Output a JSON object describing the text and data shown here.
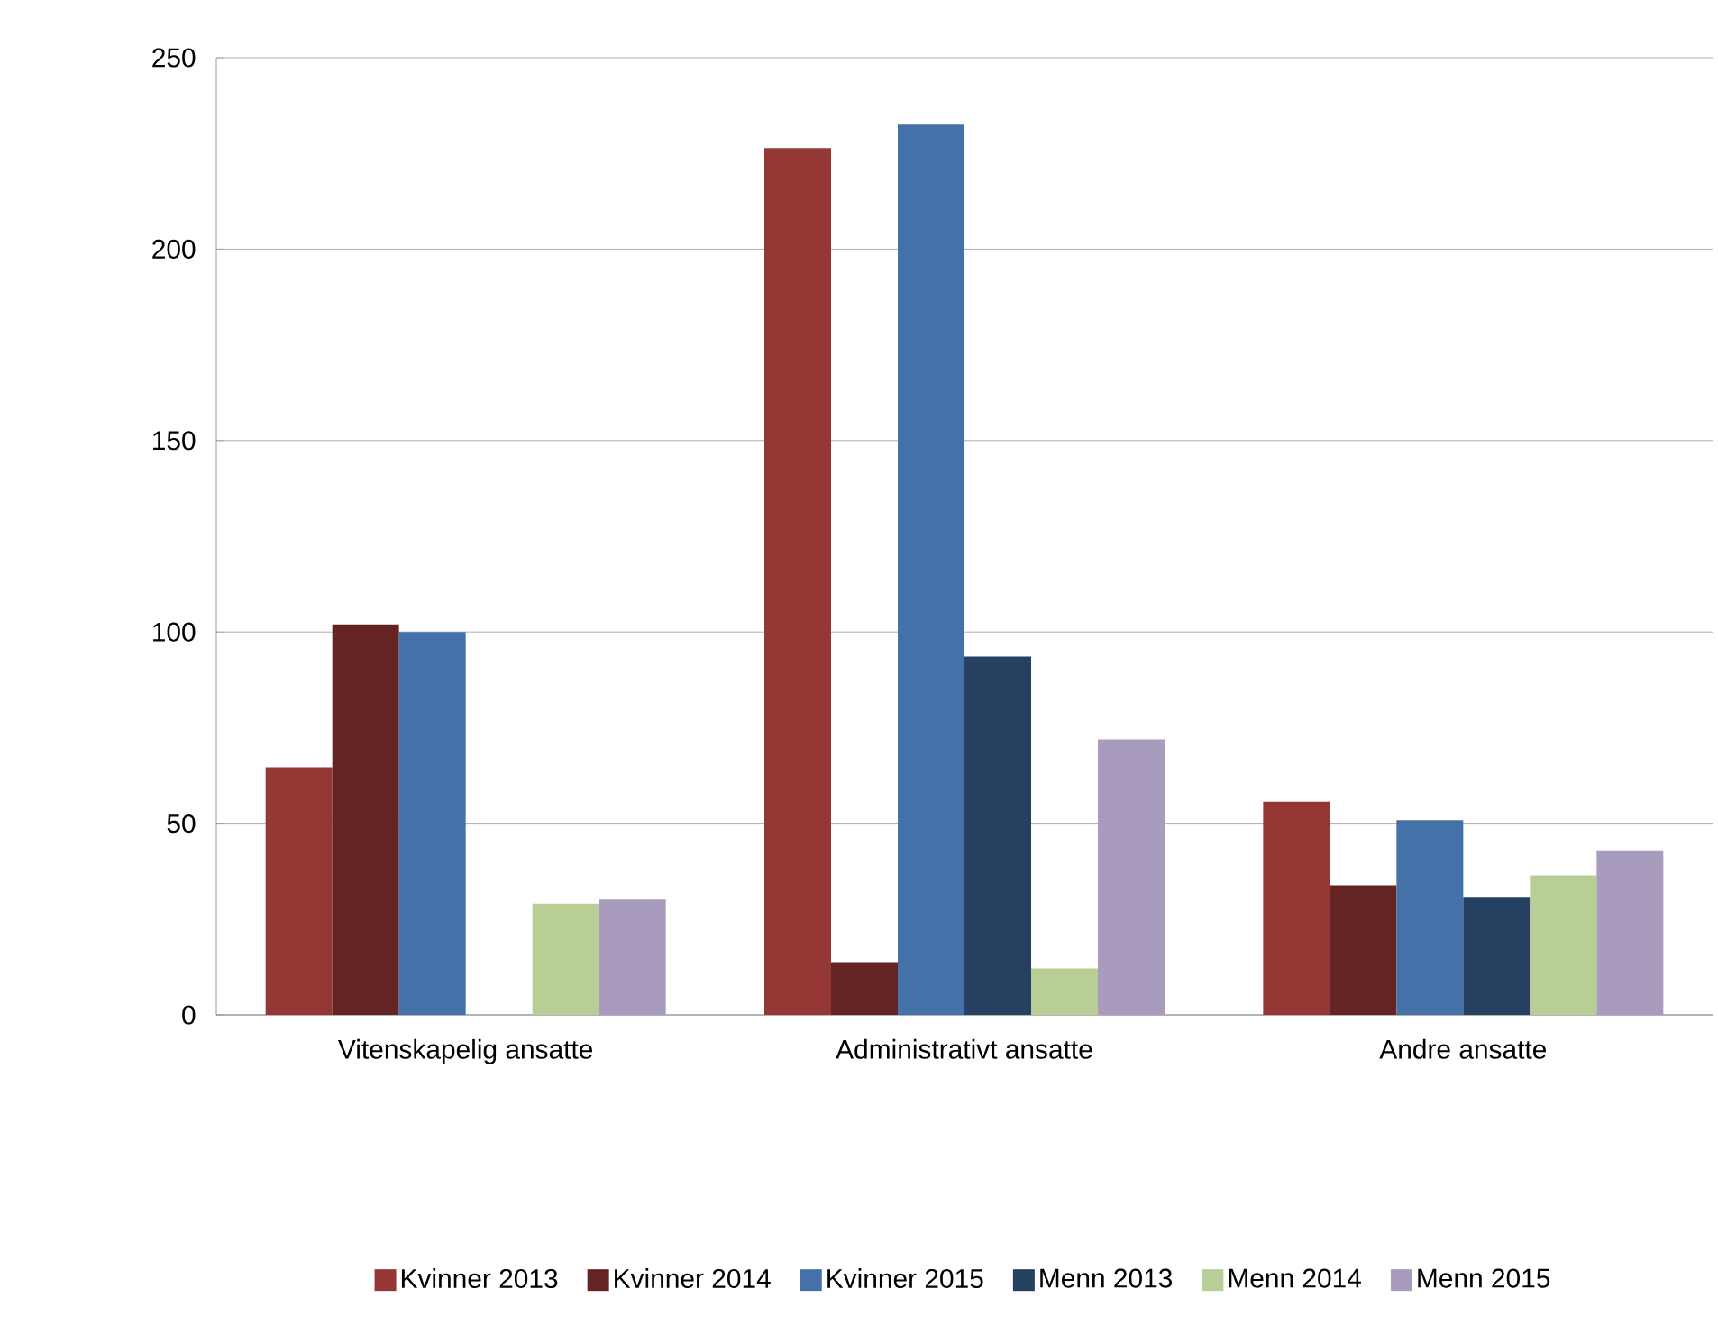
{
  "chart_data": {
    "type": "bar",
    "categories": [
      "Vitenskapelig ansatte",
      "Administrativt ansatte",
      "Andre ansatte"
    ],
    "series": [
      {
        "name": "Kvinner 2013",
        "color": "#953735",
        "values": [
          64.6,
          226.4,
          55.6
        ]
      },
      {
        "name": "Kvinner 2014",
        "color": "#632423",
        "values": [
          102,
          13.8,
          33.8
        ]
      },
      {
        "name": "Kvinner 2015",
        "color": "#4472a8",
        "values": [
          100,
          232.5,
          50.8
        ]
      },
      {
        "name": "Menn 2013",
        "color": "#254061",
        "values": [
          null,
          93.6,
          30.8
        ]
      },
      {
        "name": "Menn 2014",
        "color": "#b9cd96",
        "values": [
          29,
          12.1,
          36.4
        ]
      },
      {
        "name": "Menn 2015",
        "color": "#a99bbd",
        "values": [
          30.3,
          71.9,
          42.9
        ]
      }
    ],
    "ylim": [
      0,
      250
    ],
    "yticks": [
      0,
      50,
      100,
      150,
      200,
      250
    ],
    "grid": "y",
    "legend": "bottom"
  }
}
